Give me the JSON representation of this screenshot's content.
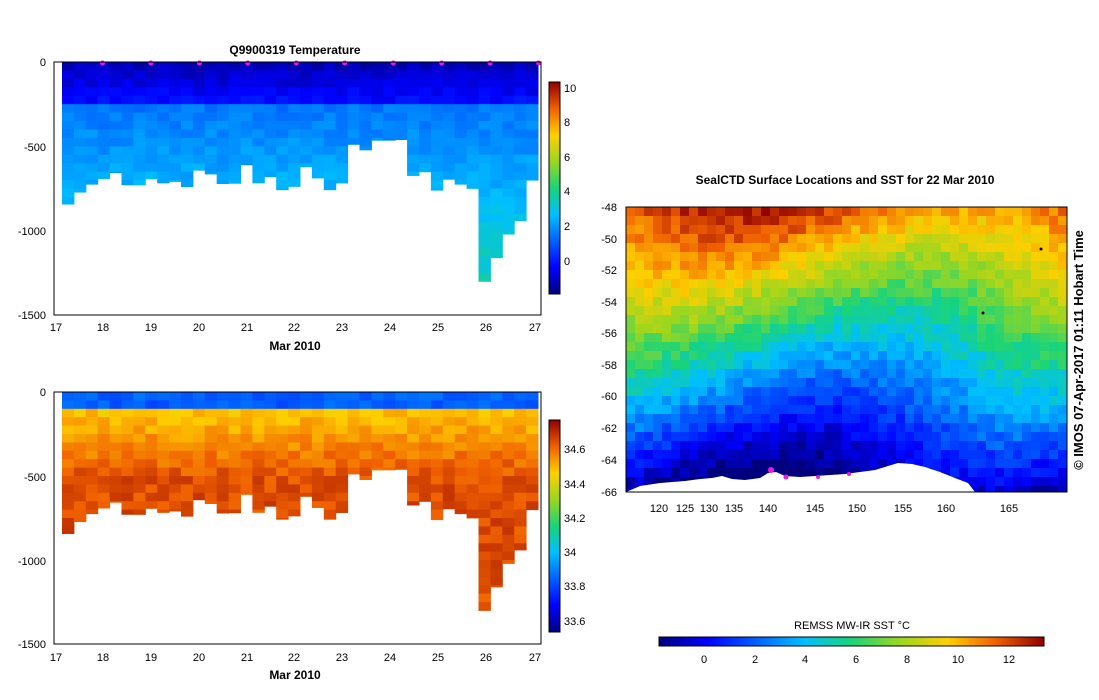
{
  "chart_data": [
    {
      "type": "heatmap",
      "title": "Q9900319  Temperature",
      "xlabel": "Mar 2010",
      "ylabel": "",
      "x_ticks": [
        "17",
        "18",
        "19",
        "20",
        "21",
        "22",
        "23",
        "24",
        "25",
        "26",
        "27"
      ],
      "xlim": [
        17,
        27.05
      ],
      "y_ticks": [
        "0",
        "-500",
        "-1000",
        "-1500"
      ],
      "ylim": [
        -1500,
        0
      ],
      "colorbar_ticks": [
        "10",
        "8",
        "6",
        "4",
        "2",
        "0"
      ],
      "colorbar_range": [
        -1.8,
        10.5
      ],
      "profile_markers": [
        18,
        19,
        20,
        21,
        22,
        23,
        24,
        25,
        26,
        27
      ]
    },
    {
      "type": "heatmap",
      "title": "",
      "xlabel": "Mar 2010",
      "ylabel": "",
      "x_ticks": [
        "17",
        "18",
        "19",
        "20",
        "21",
        "22",
        "23",
        "24",
        "25",
        "26",
        "27"
      ],
      "xlim": [
        17,
        27.05
      ],
      "y_ticks": [
        "0",
        "-500",
        "-1000",
        "-1500"
      ],
      "ylim": [
        -1500,
        0
      ],
      "colorbar_ticks": [
        "34.6",
        "34.4",
        "34.2",
        "34",
        "33.8",
        "33.6"
      ],
      "colorbar_range": [
        33.55,
        34.75
      ]
    },
    {
      "type": "heatmap",
      "title": "SealCTD Surface Locations and SST for 22 Mar 2010",
      "xlabel": "",
      "ylabel": "",
      "x_ticks": [
        "120",
        "125",
        "130",
        "135",
        "140",
        "145",
        "150",
        "155",
        "160",
        "165"
      ],
      "xlim": [
        118,
        169
      ],
      "y_ticks": [
        "-48",
        "-50",
        "-52",
        "-54",
        "-56",
        "-58",
        "-60",
        "-62",
        "-64",
        "-66"
      ],
      "ylim": [
        -66,
        -48
      ],
      "colorbar_label": "REMSS MW-IR SST °C",
      "colorbar_ticks": [
        "0",
        "2",
        "4",
        "6",
        "8",
        "10",
        "12"
      ],
      "colorbar_range": [
        -1.8,
        13.5
      ]
    }
  ],
  "credit": "©  IMOS 07-Apr-2017 01:11 Hobart Time",
  "colors": {
    "marker": "#e21ee2",
    "background": "#ffffff"
  }
}
